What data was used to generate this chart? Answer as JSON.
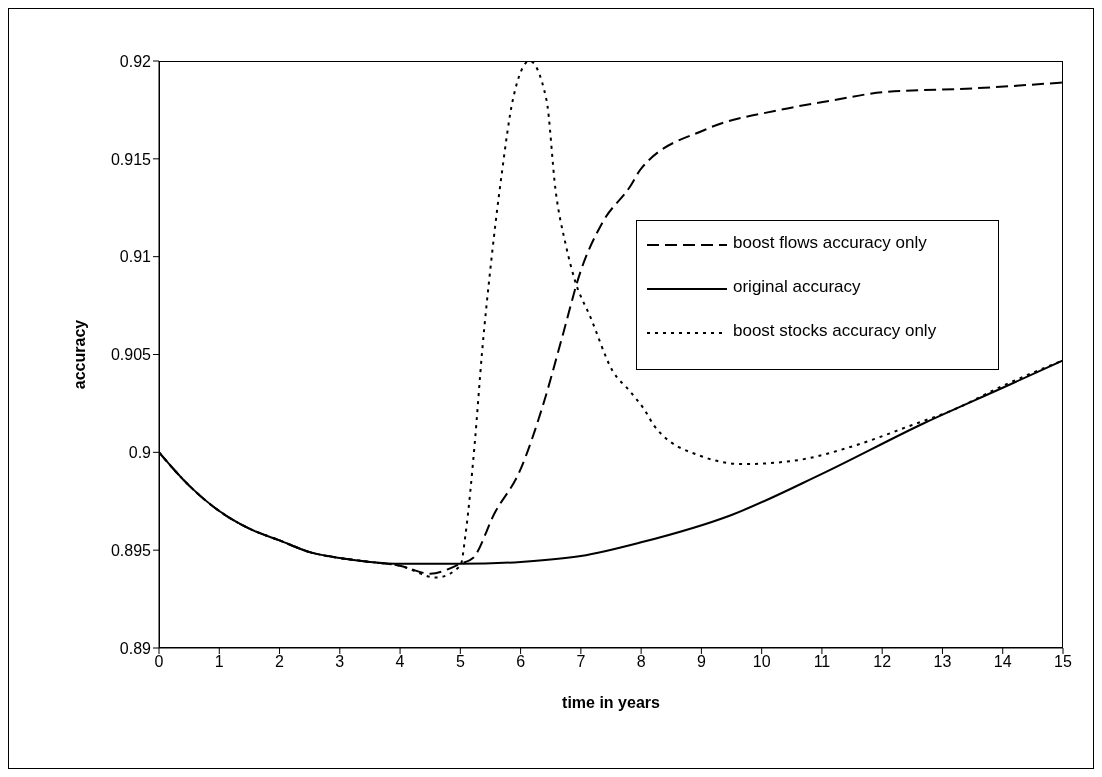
{
  "chart_data": {
    "type": "line",
    "xlabel": "time in years",
    "ylabel": "accuracy",
    "xlim": [
      0,
      15
    ],
    "xticks": [
      0,
      1,
      2,
      3,
      4,
      5,
      6,
      7,
      8,
      9,
      10,
      11,
      12,
      13,
      14,
      15
    ],
    "ylim": [
      0.89,
      0.92
    ],
    "yticks": [
      0.89,
      0.895,
      0.9,
      0.905,
      0.91,
      0.915,
      0.92
    ],
    "grid": false,
    "legend": "right",
    "marker": "none",
    "series": [
      {
        "name": "boost flows accuracy only",
        "color": "#000000",
        "line_style": "dashed",
        "x": [
          0,
          0.5,
          1,
          1.5,
          2,
          2.5,
          3,
          3.5,
          4,
          4.5,
          5,
          5.21,
          5.57,
          5.98,
          6.4,
          6.7,
          6.99,
          7.35,
          7.82,
          8.0,
          9.07,
          10.3,
          11.2,
          12,
          13.5,
          15
        ],
        "values": [
          0.9,
          0.8983,
          0.897,
          0.8961,
          0.8955,
          0.8949,
          0.8946,
          0.8944,
          0.8942,
          0.8938,
          0.8943,
          0.8946,
          0.8969,
          0.899,
          0.9027,
          0.906,
          0.9092,
          0.9117,
          0.9136,
          0.9145,
          0.9165,
          0.9175,
          0.918,
          0.9184,
          0.9186,
          0.9189
        ]
      },
      {
        "name": "original accuracy",
        "color": "#000000",
        "line_style": "solid",
        "x": [
          0,
          0.5,
          1,
          1.5,
          2,
          2.5,
          3,
          3.5,
          4,
          5,
          6,
          7,
          8,
          9.5,
          11,
          12.7,
          14,
          15
        ],
        "values": [
          0.9,
          0.8983,
          0.897,
          0.8961,
          0.8955,
          0.8949,
          0.8946,
          0.8944,
          0.8943,
          0.8943,
          0.8944,
          0.8947,
          0.8954,
          0.8968,
          0.8989,
          0.9015,
          0.9033,
          0.9047
        ]
      },
      {
        "name": "boost stocks accuracy only",
        "color": "#000000",
        "line_style": "dotted",
        "x": [
          0,
          0.5,
          1,
          1.5,
          2,
          2.5,
          3,
          3.5,
          4,
          4.6,
          5,
          5.09,
          5.24,
          5.36,
          5.51,
          5.69,
          5.87,
          6.15,
          6.43,
          6.58,
          6.75,
          6.9,
          7.16,
          7.52,
          7.82,
          8.05,
          8.23,
          9,
          9.7,
          10.6,
          11.5,
          12.5,
          13.2,
          14,
          15
        ],
        "values": [
          0.9,
          0.8983,
          0.897,
          0.8961,
          0.8955,
          0.8949,
          0.8946,
          0.8944,
          0.8942,
          0.8936,
          0.8942,
          0.8959,
          0.9005,
          0.9051,
          0.9097,
          0.9143,
          0.918,
          0.92,
          0.918,
          0.9134,
          0.9106,
          0.9088,
          0.9069,
          0.9042,
          0.9031,
          0.9022,
          0.9013,
          0.8998,
          0.8994,
          0.8996,
          0.9003,
          0.9014,
          0.9022,
          0.9034,
          0.9047
        ]
      }
    ]
  }
}
